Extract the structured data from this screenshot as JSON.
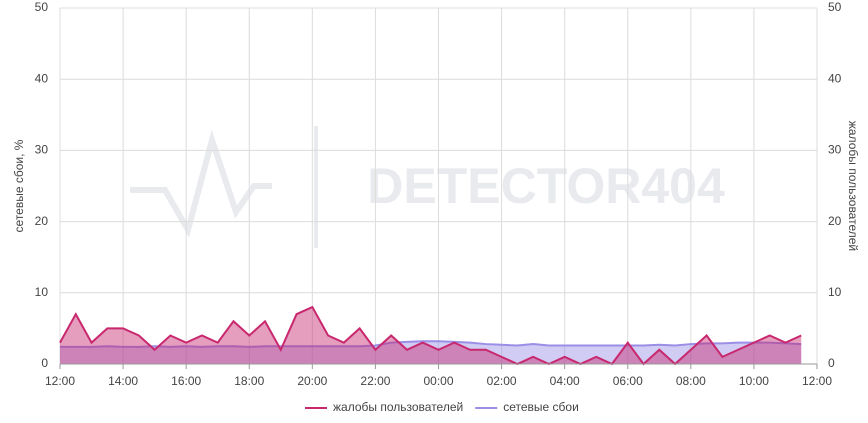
{
  "chart_data": {
    "type": "area",
    "watermark": "DETECTOR404",
    "ylabel": "сетевые сбои, %",
    "y2label": "жалобы пользователей",
    "xlim": [
      0,
      24
    ],
    "xticks": [
      {
        "value": 0,
        "label": "12:00"
      },
      {
        "value": 2,
        "label": "14:00"
      },
      {
        "value": 4,
        "label": "16:00"
      },
      {
        "value": 6,
        "label": "18:00"
      },
      {
        "value": 8,
        "label": "20:00"
      },
      {
        "value": 10,
        "label": "22:00"
      },
      {
        "value": 12,
        "label": "00:00"
      },
      {
        "value": 14,
        "label": "02:00"
      },
      {
        "value": 16,
        "label": "04:00"
      },
      {
        "value": 18,
        "label": "06:00"
      },
      {
        "value": 20,
        "label": "08:00"
      },
      {
        "value": 22,
        "label": "10:00"
      },
      {
        "value": 24,
        "label": "12:00"
      }
    ],
    "ylim": [
      0,
      50
    ],
    "yticks": [
      0,
      10,
      20,
      30,
      40,
      50
    ],
    "y2lim": [
      0,
      50
    ],
    "y2ticks": [
      0,
      10,
      20,
      30,
      40,
      50
    ],
    "grid": true,
    "legend": "bottom",
    "x": [
      0,
      0.5,
      1,
      1.5,
      2,
      2.5,
      3,
      3.5,
      4,
      4.5,
      5,
      5.5,
      6,
      6.5,
      7,
      7.5,
      8,
      8.5,
      9,
      9.5,
      10,
      10.5,
      11,
      11.5,
      12,
      12.5,
      13,
      13.5,
      14,
      14.5,
      15,
      15.5,
      16,
      16.5,
      17,
      17.5,
      18,
      18.5,
      19,
      19.5,
      20,
      20.5,
      21,
      21.5,
      22,
      22.5,
      23,
      23.5
    ],
    "series": [
      {
        "name": "жалобы пользователей",
        "color": "#c8286e",
        "axis": "y2",
        "values": [
          3,
          7,
          3,
          5,
          5,
          4,
          2,
          4,
          3,
          4,
          3,
          6,
          4,
          6,
          2,
          7,
          8,
          4,
          3,
          5,
          2,
          4,
          2,
          3,
          2,
          3,
          2,
          2,
          1,
          0,
          1,
          0,
          1,
          0,
          1,
          0,
          3,
          0,
          2,
          0,
          2,
          4,
          1,
          2,
          3,
          4,
          3,
          4
        ]
      },
      {
        "name": "сетевые сбои",
        "color": "#9a8ee6",
        "values": [
          2.4,
          2.4,
          2.4,
          2.5,
          2.4,
          2.4,
          2.5,
          2.4,
          2.5,
          2.4,
          2.5,
          2.5,
          2.4,
          2.5,
          2.5,
          2.5,
          2.5,
          2.5,
          2.5,
          2.5,
          2.6,
          3,
          3.1,
          3.2,
          3.2,
          3.1,
          3,
          2.8,
          2.7,
          2.6,
          2.8,
          2.6,
          2.6,
          2.6,
          2.6,
          2.6,
          2.6,
          2.6,
          2.7,
          2.6,
          2.8,
          2.9,
          2.9,
          3,
          3,
          3,
          2.9,
          2.8
        ]
      }
    ]
  }
}
